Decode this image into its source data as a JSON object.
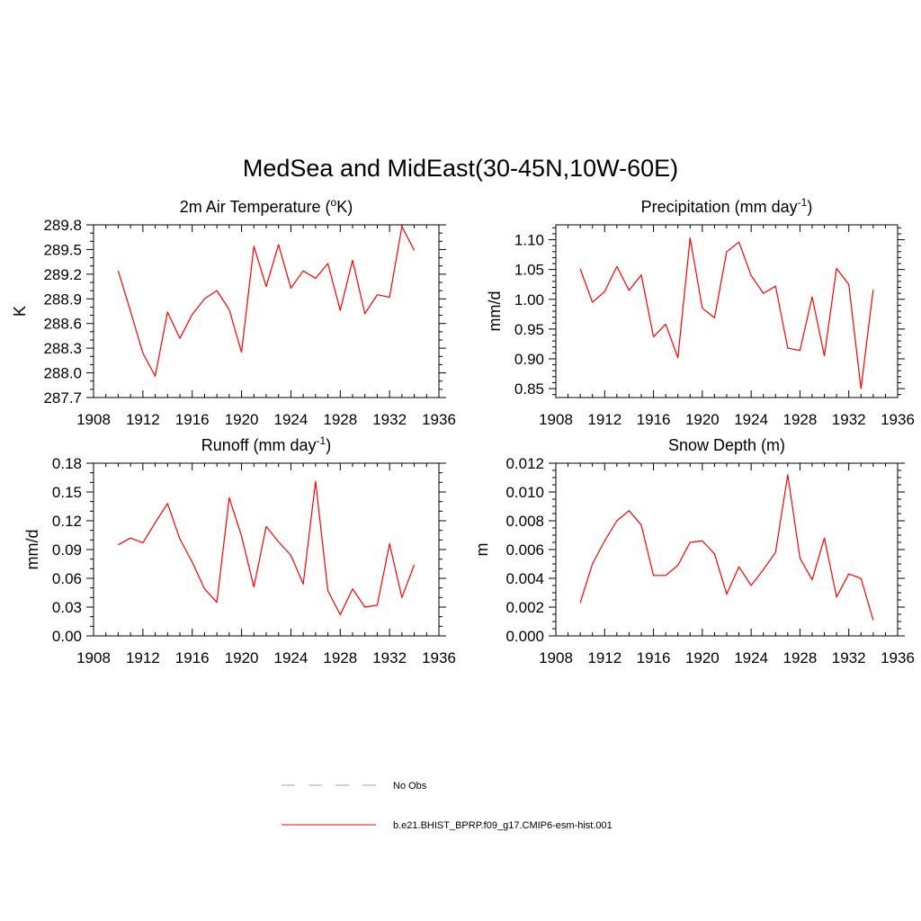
{
  "figure": {
    "title": "MedSea and MidEast(30-45N,10W-60E)"
  },
  "chart_data": [
    {
      "type": "line",
      "title": "2m Air Temperature (°K)",
      "title_main": "2m Air Temperature (",
      "title_sup": "o",
      "title_tail": "K)",
      "ylabel": "K",
      "xlim": [
        1908,
        1936
      ],
      "ylim": [
        287.7,
        289.8
      ],
      "x_ticks": [
        1908,
        1912,
        1916,
        1920,
        1924,
        1928,
        1932,
        1936
      ],
      "x_tick_labels": [
        "1908",
        "1912",
        "1916",
        "1920",
        "1924",
        "1928",
        "1932",
        "1936"
      ],
      "y_ticks": [
        287.7,
        288.0,
        288.3,
        288.6,
        288.9,
        289.2,
        289.5,
        289.8
      ],
      "y_tick_labels": [
        "287.7",
        "288.0",
        "288.3",
        "288.6",
        "288.9",
        "289.2",
        "289.5",
        "289.8"
      ],
      "y_minor_step": 0.1,
      "series": [
        {
          "color": "#ff0000",
          "x": [
            1910,
            1911,
            1912,
            1913,
            1914,
            1915,
            1916,
            1917,
            1918,
            1919,
            1920,
            1921,
            1922,
            1923,
            1924,
            1925,
            1926,
            1927,
            1928,
            1929,
            1930,
            1931,
            1932,
            1933,
            1934
          ],
          "y": [
            289.24,
            288.75,
            288.24,
            287.96,
            288.74,
            288.42,
            288.71,
            288.9,
            289.0,
            288.77,
            288.25,
            289.54,
            289.05,
            289.56,
            289.03,
            289.24,
            289.15,
            289.33,
            288.76,
            289.37,
            288.72,
            288.95,
            288.92,
            289.78,
            289.49
          ]
        }
      ]
    },
    {
      "type": "line",
      "title": "Precipitation (mm day-1)",
      "title_main": "Precipitation (mm day",
      "title_sup": "-1",
      "title_tail": ")",
      "ylabel": "mm/d",
      "xlim": [
        1908,
        1936
      ],
      "ylim": [
        0.835,
        1.125
      ],
      "x_ticks": [
        1908,
        1912,
        1916,
        1920,
        1924,
        1928,
        1932,
        1936
      ],
      "x_tick_labels": [
        "1908",
        "1912",
        "1916",
        "1920",
        "1924",
        "1928",
        "1932",
        "1936"
      ],
      "y_ticks": [
        0.85,
        0.9,
        0.95,
        1.0,
        1.05,
        1.1
      ],
      "y_tick_labels": [
        "0.85",
        "0.90",
        "0.95",
        "1.00",
        "1.05",
        "1.10"
      ],
      "y_minor_step": 0.01,
      "series": [
        {
          "color": "#ff0000",
          "x": [
            1910,
            1911,
            1912,
            1913,
            1914,
            1915,
            1916,
            1917,
            1918,
            1919,
            1920,
            1921,
            1922,
            1923,
            1924,
            1925,
            1926,
            1927,
            1928,
            1929,
            1930,
            1931,
            1932,
            1933,
            1934
          ],
          "y": [
            1.051,
            0.995,
            1.013,
            1.055,
            1.015,
            1.041,
            0.937,
            0.958,
            0.902,
            1.103,
            0.985,
            0.969,
            1.08,
            1.096,
            1.04,
            1.01,
            1.022,
            0.918,
            0.914,
            1.004,
            0.905,
            1.052,
            1.025,
            0.85,
            1.016
          ]
        }
      ]
    },
    {
      "type": "line",
      "title": "Runoff (mm day-1)",
      "title_main": "Runoff (mm day",
      "title_sup": "-1",
      "title_tail": ")",
      "ylabel": "mm/d",
      "xlim": [
        1908,
        1936
      ],
      "ylim": [
        0,
        0.18
      ],
      "x_ticks": [
        1908,
        1912,
        1916,
        1920,
        1924,
        1928,
        1932,
        1936
      ],
      "x_tick_labels": [
        "1908",
        "1912",
        "1916",
        "1920",
        "1924",
        "1928",
        "1932",
        "1936"
      ],
      "y_ticks": [
        0.0,
        0.03,
        0.06,
        0.09,
        0.12,
        0.15,
        0.18
      ],
      "y_tick_labels": [
        "0.00",
        "0.03",
        "0.06",
        "0.09",
        "0.12",
        "0.15",
        "0.18"
      ],
      "y_minor_step": 0.01,
      "series": [
        {
          "color": "#ff0000",
          "x": [
            1910,
            1911,
            1912,
            1913,
            1914,
            1915,
            1916,
            1917,
            1918,
            1919,
            1920,
            1921,
            1922,
            1923,
            1924,
            1925,
            1926,
            1927,
            1928,
            1929,
            1930,
            1931,
            1932,
            1933,
            1934
          ],
          "y": [
            0.095,
            0.102,
            0.097,
            0.118,
            0.138,
            0.101,
            0.077,
            0.049,
            0.035,
            0.144,
            0.104,
            0.051,
            0.114,
            0.098,
            0.084,
            0.054,
            0.161,
            0.047,
            0.022,
            0.049,
            0.03,
            0.032,
            0.096,
            0.04,
            0.074
          ]
        }
      ]
    },
    {
      "type": "line",
      "title": "Snow Depth (m)",
      "title_main": "Snow Depth (m)",
      "title_sup": "",
      "title_tail": "",
      "ylabel": "m",
      "xlim": [
        1908,
        1936
      ],
      "ylim": [
        0,
        0.012
      ],
      "x_ticks": [
        1908,
        1912,
        1916,
        1920,
        1924,
        1928,
        1932,
        1936
      ],
      "x_tick_labels": [
        "1908",
        "1912",
        "1916",
        "1920",
        "1924",
        "1928",
        "1932",
        "1936"
      ],
      "y_ticks": [
        0.0,
        0.002,
        0.004,
        0.006,
        0.008,
        0.01,
        0.012
      ],
      "y_tick_labels": [
        "0.000",
        "0.002",
        "0.004",
        "0.006",
        "0.008",
        "0.010",
        "0.012"
      ],
      "y_minor_step": 0.0005,
      "series": [
        {
          "color": "#ff0000",
          "x": [
            1910,
            1911,
            1912,
            1913,
            1914,
            1915,
            1916,
            1917,
            1918,
            1919,
            1920,
            1921,
            1922,
            1923,
            1924,
            1925,
            1926,
            1927,
            1928,
            1929,
            1930,
            1931,
            1932,
            1933,
            1934
          ],
          "y": [
            0.0023,
            0.005,
            0.0066,
            0.008,
            0.0087,
            0.0077,
            0.0042,
            0.0042,
            0.0049,
            0.0065,
            0.0066,
            0.0057,
            0.0029,
            0.0048,
            0.0035,
            0.0046,
            0.0058,
            0.0112,
            0.0054,
            0.0039,
            0.0068,
            0.0027,
            0.0043,
            0.004,
            0.0011
          ]
        }
      ]
    }
  ],
  "legend": {
    "items": [
      {
        "label": "No Obs",
        "color": "#9999ff",
        "dashed": true
      },
      {
        "label": "b.e21.BHIST_BPRP.f09_g17.CMIP6-esm-hist.001",
        "color": "#ff0000",
        "dashed": false
      }
    ]
  }
}
